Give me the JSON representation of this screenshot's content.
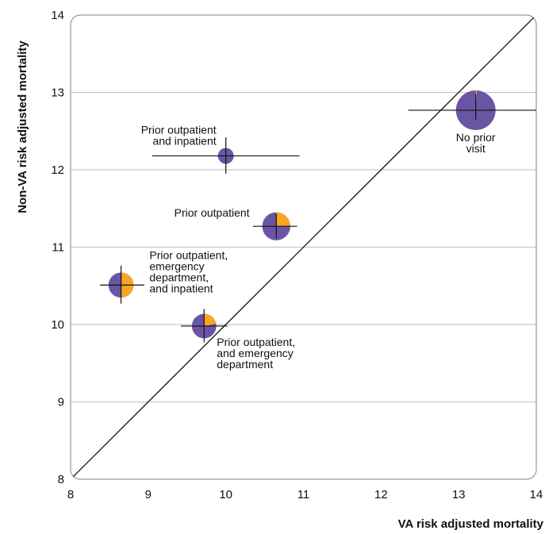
{
  "chart_data": {
    "type": "scatter",
    "xlabel": "VA risk adjusted mortality",
    "ylabel": "Non-VA risk adjusted mortality",
    "xlim": [
      8,
      14
    ],
    "ylim": [
      8,
      14
    ],
    "xticks": [
      "8",
      "9",
      "10",
      "11",
      "12",
      "13",
      "14"
    ],
    "yticks": [
      "8",
      "9",
      "10",
      "11",
      "12",
      "13",
      "14"
    ],
    "grid": "horizontal",
    "reference_line": "y = x",
    "colors": {
      "primary": "#6a55a5",
      "secondary": "#f5a623",
      "line": "#111111",
      "grid": "#c8c8c8"
    },
    "points": [
      {
        "label": [
          "Prior outpatient",
          "and inpatient"
        ],
        "x": 10.0,
        "y": 12.18,
        "x_ci": [
          9.05,
          10.95
        ],
        "y_ci": [
          11.95,
          12.42
        ],
        "size": 0.16,
        "secondary_share": 0.0,
        "label_align": "end"
      },
      {
        "label": [
          "No prior",
          "visit"
        ],
        "x": 13.22,
        "y": 12.77,
        "x_ci": [
          12.35,
          14.0
        ],
        "y_ci": [
          12.65,
          12.98
        ],
        "size": 1.0,
        "secondary_share": 0.01,
        "label_align": "middle"
      },
      {
        "label": [
          "Prior outpatient"
        ],
        "x": 10.65,
        "y": 11.27,
        "x_ci": [
          10.35,
          10.92
        ],
        "y_ci": [
          11.12,
          11.43
        ],
        "size": 0.5,
        "secondary_share": 0.25,
        "label_align": "end"
      },
      {
        "label": [
          "Prior outpatient,",
          "emergency",
          "department,",
          "and inpatient"
        ],
        "x": 8.65,
        "y": 10.51,
        "x_ci": [
          8.38,
          8.95
        ],
        "y_ci": [
          10.27,
          10.76
        ],
        "size": 0.4,
        "secondary_share": 0.5,
        "label_align": "start"
      },
      {
        "label": [
          "Prior outpatient,",
          "and emergency",
          "department"
        ],
        "x": 9.72,
        "y": 9.98,
        "x_ci": [
          9.42,
          10.02
        ],
        "y_ci": [
          9.77,
          10.2
        ],
        "size": 0.38,
        "secondary_share": 0.22,
        "label_align": "start"
      }
    ]
  }
}
